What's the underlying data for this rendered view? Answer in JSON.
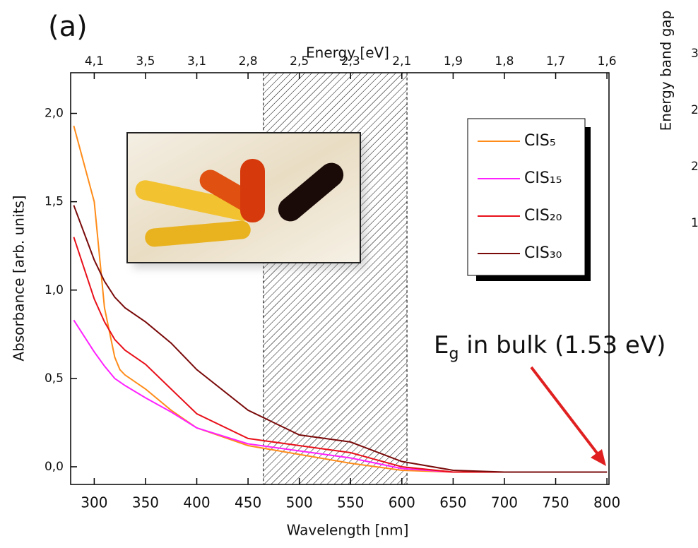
{
  "chart_data": {
    "type": "line",
    "panel_label": "(a)",
    "x_label": "Wavelength [nm]",
    "y_label": "Absorbance [arb. units]",
    "x2_label": "Energy [eV]",
    "x": [
      280,
      300,
      310,
      320,
      325,
      330,
      350,
      375,
      400,
      450,
      500,
      550,
      600,
      650,
      700,
      750,
      800
    ],
    "series": [
      {
        "name": "CIS₅",
        "color": "#ff8c1a",
        "values": [
          1.93,
          1.5,
          0.9,
          0.62,
          0.55,
          0.52,
          0.44,
          0.32,
          0.22,
          0.12,
          0.07,
          0.02,
          -0.02,
          -0.03,
          -0.03,
          -0.03,
          -0.03
        ]
      },
      {
        "name": "CIS₁₅",
        "color": "#ff20ff",
        "values": [
          0.83,
          0.65,
          0.57,
          0.5,
          0.48,
          0.46,
          0.39,
          0.31,
          0.22,
          0.13,
          0.09,
          0.05,
          -0.01,
          -0.03,
          -0.03,
          -0.03,
          -0.03
        ]
      },
      {
        "name": "CIS₂₀",
        "color": "#e8101a",
        "values": [
          1.3,
          0.95,
          0.82,
          0.72,
          0.69,
          0.66,
          0.58,
          0.44,
          0.3,
          0.16,
          0.12,
          0.08,
          0.0,
          -0.03,
          -0.03,
          -0.03,
          -0.03
        ]
      },
      {
        "name": "CIS₃₀",
        "color": "#7a0a0a",
        "values": [
          1.48,
          1.17,
          1.05,
          0.96,
          0.93,
          0.9,
          0.82,
          0.7,
          0.55,
          0.32,
          0.18,
          0.14,
          0.03,
          -0.02,
          -0.03,
          -0.03,
          -0.03
        ]
      }
    ],
    "xlim": [
      277,
      802
    ],
    "ylim": [
      -0.1,
      2.23
    ],
    "xticks": [
      300,
      350,
      400,
      450,
      500,
      550,
      600,
      650,
      700,
      750,
      800
    ],
    "yticks": [
      {
        "value": 0.0,
        "label": "0,0"
      },
      {
        "value": 0.5,
        "label": "0,5"
      },
      {
        "value": 1.0,
        "label": "1,0"
      },
      {
        "value": 1.5,
        "label": "1,5"
      },
      {
        "value": 2.0,
        "label": "2,0"
      }
    ],
    "x2ticks": [
      {
        "value": 300,
        "label": "4,1"
      },
      {
        "value": 350,
        "label": "3,5"
      },
      {
        "value": 400,
        "label": "3,1"
      },
      {
        "value": 450,
        "label": "2,8"
      },
      {
        "value": 500,
        "label": "2,5"
      },
      {
        "value": 550,
        "label": "2,3"
      },
      {
        "value": 600,
        "label": "2,1"
      },
      {
        "value": 650,
        "label": "1,9"
      },
      {
        "value": 700,
        "label": "1,8"
      },
      {
        "value": 750,
        "label": "1,7"
      },
      {
        "value": 800,
        "label": "1,6"
      }
    ],
    "shaded_region": [
      465,
      605
    ],
    "annotation": [
      "E",
      "g",
      " in bulk (1.53 eV)"
    ],
    "legend": "upper right"
  },
  "cropped_panel": {
    "y_label": "Energy band gap",
    "ticks": [
      "3",
      "2",
      "2",
      "1"
    ]
  }
}
